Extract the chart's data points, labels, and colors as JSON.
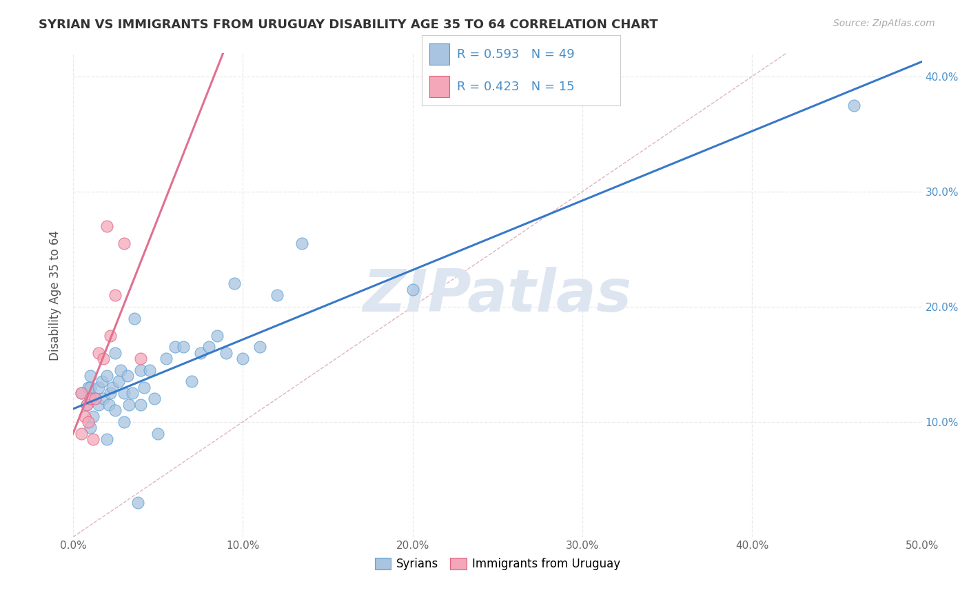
{
  "title": "SYRIAN VS IMMIGRANTS FROM URUGUAY DISABILITY AGE 35 TO 64 CORRELATION CHART",
  "source": "Source: ZipAtlas.com",
  "ylabel": "Disability Age 35 to 64",
  "xlim": [
    0.0,
    0.5
  ],
  "ylim": [
    0.0,
    0.42
  ],
  "x_ticks": [
    0.0,
    0.1,
    0.2,
    0.3,
    0.4,
    0.5
  ],
  "x_tick_labels": [
    "0.0%",
    "10.0%",
    "20.0%",
    "30.0%",
    "40.0%",
    "50.0%"
  ],
  "y_ticks": [
    0.1,
    0.2,
    0.3,
    0.4
  ],
  "y_tick_labels": [
    "10.0%",
    "20.0%",
    "30.0%",
    "40.0%"
  ],
  "syrians_x": [
    0.005,
    0.008,
    0.009,
    0.01,
    0.01,
    0.01,
    0.012,
    0.013,
    0.015,
    0.015,
    0.017,
    0.018,
    0.02,
    0.02,
    0.021,
    0.022,
    0.023,
    0.025,
    0.025,
    0.027,
    0.028,
    0.03,
    0.03,
    0.032,
    0.033,
    0.035,
    0.036,
    0.038,
    0.04,
    0.04,
    0.042,
    0.045,
    0.048,
    0.05,
    0.055,
    0.06,
    0.065,
    0.07,
    0.075,
    0.08,
    0.085,
    0.09,
    0.095,
    0.1,
    0.11,
    0.12,
    0.135,
    0.2,
    0.46
  ],
  "syrians_y": [
    0.125,
    0.115,
    0.13,
    0.095,
    0.13,
    0.14,
    0.105,
    0.12,
    0.115,
    0.13,
    0.135,
    0.12,
    0.085,
    0.14,
    0.115,
    0.125,
    0.13,
    0.11,
    0.16,
    0.135,
    0.145,
    0.1,
    0.125,
    0.14,
    0.115,
    0.125,
    0.19,
    0.03,
    0.115,
    0.145,
    0.13,
    0.145,
    0.12,
    0.09,
    0.155,
    0.165,
    0.165,
    0.135,
    0.16,
    0.165,
    0.175,
    0.16,
    0.22,
    0.155,
    0.165,
    0.21,
    0.255,
    0.215,
    0.375
  ],
  "uruguay_x": [
    0.005,
    0.005,
    0.007,
    0.008,
    0.009,
    0.01,
    0.012,
    0.013,
    0.015,
    0.018,
    0.02,
    0.022,
    0.025,
    0.03,
    0.04
  ],
  "uruguay_y": [
    0.09,
    0.125,
    0.105,
    0.115,
    0.1,
    0.12,
    0.085,
    0.12,
    0.16,
    0.155,
    0.27,
    0.175,
    0.21,
    0.255,
    0.155
  ],
  "R_syrians": 0.593,
  "N_syrians": 49,
  "R_uruguay": 0.423,
  "N_uruguay": 15,
  "syrians_dot_color": "#a8c4e0",
  "syrians_dot_edge": "#5a9fd4",
  "uruguay_dot_color": "#f4a7b9",
  "uruguay_dot_edge": "#e06080",
  "syrians_line_color": "#3878c8",
  "uruguay_line_color": "#e07090",
  "diagonal_color": "#d8a0b0",
  "grid_color": "#e8e8e8",
  "ytick_color": "#4a90c8",
  "watermark_color": "#dde6f0",
  "background_color": "#ffffff",
  "title_color": "#333333",
  "source_color": "#aaaaaa"
}
